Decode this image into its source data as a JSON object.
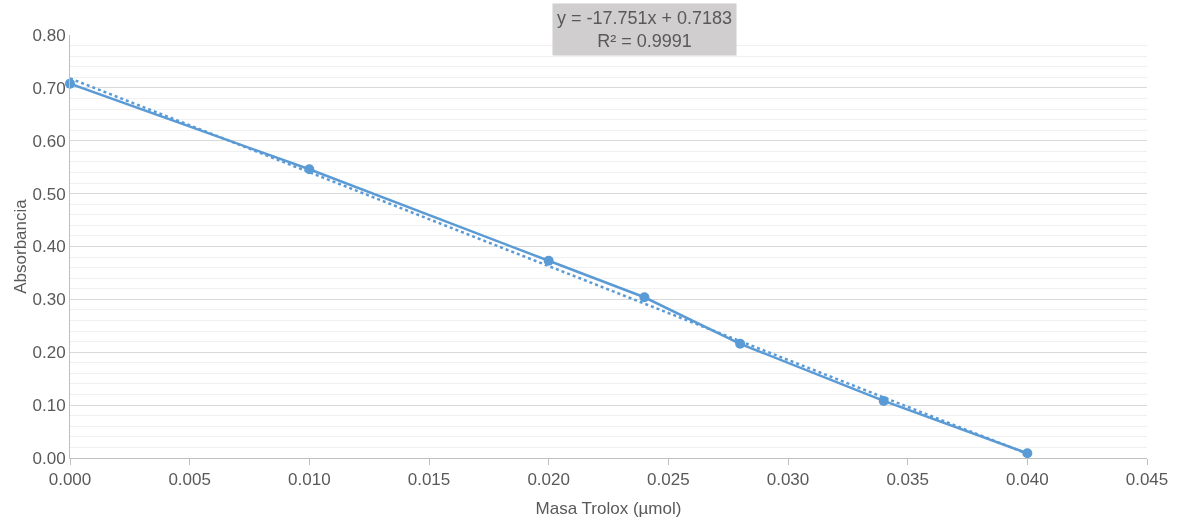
{
  "chart_data": {
    "type": "line",
    "xlabel": "Masa Trolox (µmol)",
    "ylabel": "Absorbancia",
    "annotations": [
      "y = -17.751x + 0.7183",
      "R² = 0.9991"
    ],
    "x": [
      0,
      0.01,
      0.02,
      0.024,
      0.028,
      0.034,
      0.04
    ],
    "series": [
      {
        "color": "#5b9bd5",
        "values": [
          0.708,
          0.546,
          0.373,
          0.304,
          0.216,
          0.108,
          0.009
        ],
        "marker": "circle",
        "line_style": "solid"
      },
      {
        "type": "line",
        "color": "#5b9bd5",
        "x": [
          0,
          0.04
        ],
        "values": [
          0.718,
          0.008
        ],
        "marker": "none",
        "line_style": "dotted"
      }
    ],
    "xlim": [
      0,
      0.045
    ],
    "xticks": [
      {
        "value": 0,
        "label": "0.000"
      },
      {
        "value": 0.005,
        "label": "0.005"
      },
      {
        "value": 0.01,
        "label": "0.010"
      },
      {
        "value": 0.015,
        "label": "0.015"
      },
      {
        "value": 0.02,
        "label": "0.020"
      },
      {
        "value": 0.025,
        "label": "0.025"
      },
      {
        "value": 0.03,
        "label": "0.030"
      },
      {
        "value": 0.035,
        "label": "0.035"
      },
      {
        "value": 0.04,
        "label": "0.040"
      },
      {
        "value": 0.045,
        "label": "0.045"
      }
    ],
    "ylim": [
      0,
      0.8
    ],
    "yticks": [
      {
        "value": 0,
        "label": "0.00"
      },
      {
        "value": 0.1,
        "label": "0.10"
      },
      {
        "value": 0.2,
        "label": "0.20"
      },
      {
        "value": 0.3,
        "label": "0.30"
      },
      {
        "value": 0.4,
        "label": "0.40"
      },
      {
        "value": 0.5,
        "label": "0.50"
      },
      {
        "value": 0.6,
        "label": "0.60"
      },
      {
        "value": 0.7,
        "label": "0.70"
      },
      {
        "value": 0.8,
        "label": "0.80"
      }
    ],
    "grid": "y"
  }
}
